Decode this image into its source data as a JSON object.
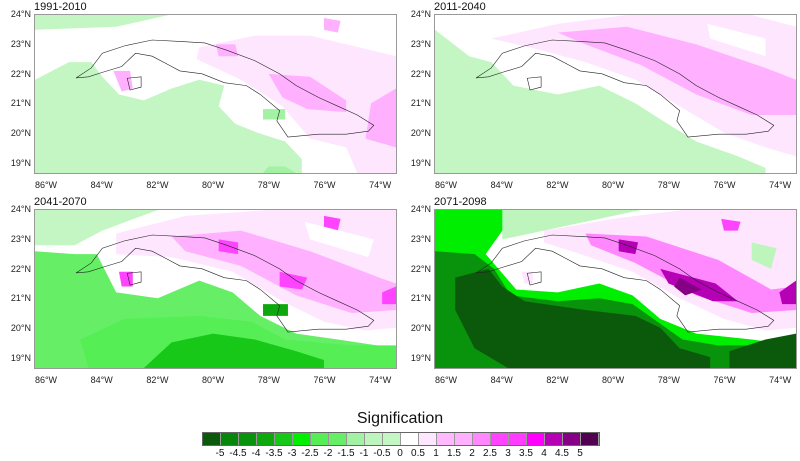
{
  "panels": [
    {
      "title": "1991-2010"
    },
    {
      "title": "2011-2040"
    },
    {
      "title": "2041-2070"
    },
    {
      "title": "2071-2098"
    }
  ],
  "lat_ticks": [
    "24°N",
    "23°N",
    "22°N",
    "21°N",
    "20°N",
    "19°N"
  ],
  "lon_ticks": [
    "86°W",
    "84°W",
    "82°W",
    "80°W",
    "78°W",
    "76°W",
    "74°W"
  ],
  "colorbar": {
    "title": "Signification",
    "labels": [
      "-5",
      "-4.5",
      "-4",
      "-3.5",
      "-3",
      "-2.5",
      "-2",
      "-1.5",
      "-1",
      "-0.5",
      "0",
      "0.5",
      "1",
      "1.5",
      "2",
      "2.5",
      "3",
      "3.5",
      "4",
      "4.5",
      "5"
    ],
    "colors": [
      "#0b5a0b",
      "#07870a",
      "#09920b",
      "#0ea80e",
      "#18c818",
      "#00ee00",
      "#55ef55",
      "#66ef66",
      "#a3f2a3",
      "#bdf5bd",
      "#c3f6c3",
      "#ffffff",
      "#ffe6ff",
      "#ffbaff",
      "#ffb0ff",
      "#ff88ff",
      "#ff44ff",
      "#ff3cff",
      "#ff00ff",
      "#b600b6",
      "#850085",
      "#520052"
    ]
  }
}
